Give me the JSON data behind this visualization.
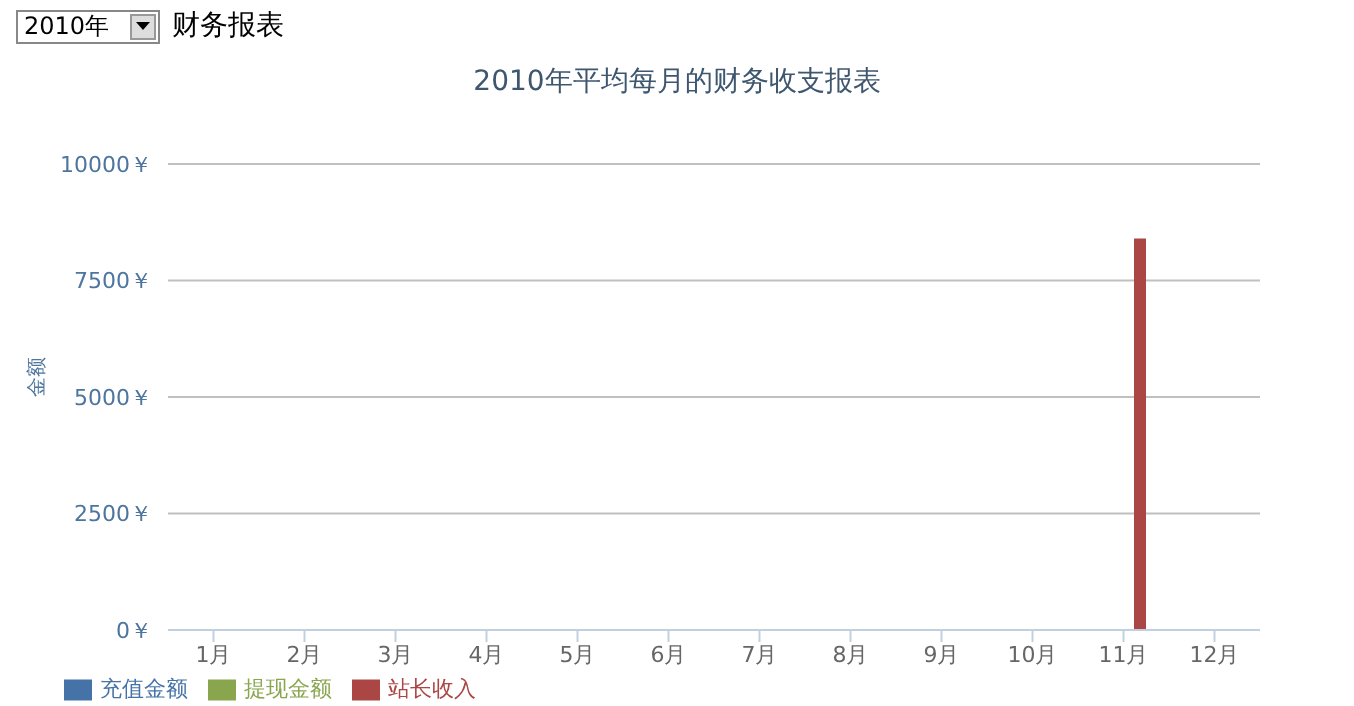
{
  "chart_data": {
    "type": "bar",
    "title": "2010年平均每月的财务收支报表",
    "ylabel": "金额",
    "annotations": [
      "2010年",
      "财务报表"
    ],
    "categories": [
      "1月",
      "2月",
      "3月",
      "4月",
      "5月",
      "6月",
      "7月",
      "8月",
      "9月",
      "10月",
      "11月",
      "12月"
    ],
    "series": [
      {
        "name": "充值金额",
        "color": "#4572a7",
        "values": [
          0,
          0,
          0,
          0,
          0,
          0,
          0,
          0,
          0,
          0,
          0,
          0
        ]
      },
      {
        "name": "提现金额",
        "color": "#89a54e",
        "values": [
          0,
          0,
          0,
          0,
          0,
          0,
          0,
          0,
          0,
          0,
          0,
          0
        ]
      },
      {
        "name": "站长收入",
        "color": "#aa4643",
        "values": [
          0,
          0,
          0,
          0,
          0,
          0,
          0,
          0,
          0,
          0,
          8400,
          0
        ]
      }
    ],
    "ylim": [
      0,
      10000
    ],
    "yticks": [
      {
        "value": 0,
        "label": "0￥"
      },
      {
        "value": 2500,
        "label": "2500￥"
      },
      {
        "value": 5000,
        "label": "5000￥"
      },
      {
        "value": 7500,
        "label": "7500￥"
      },
      {
        "value": 10000,
        "label": "10000￥"
      }
    ],
    "grid": "y",
    "legend": "bottom left"
  }
}
